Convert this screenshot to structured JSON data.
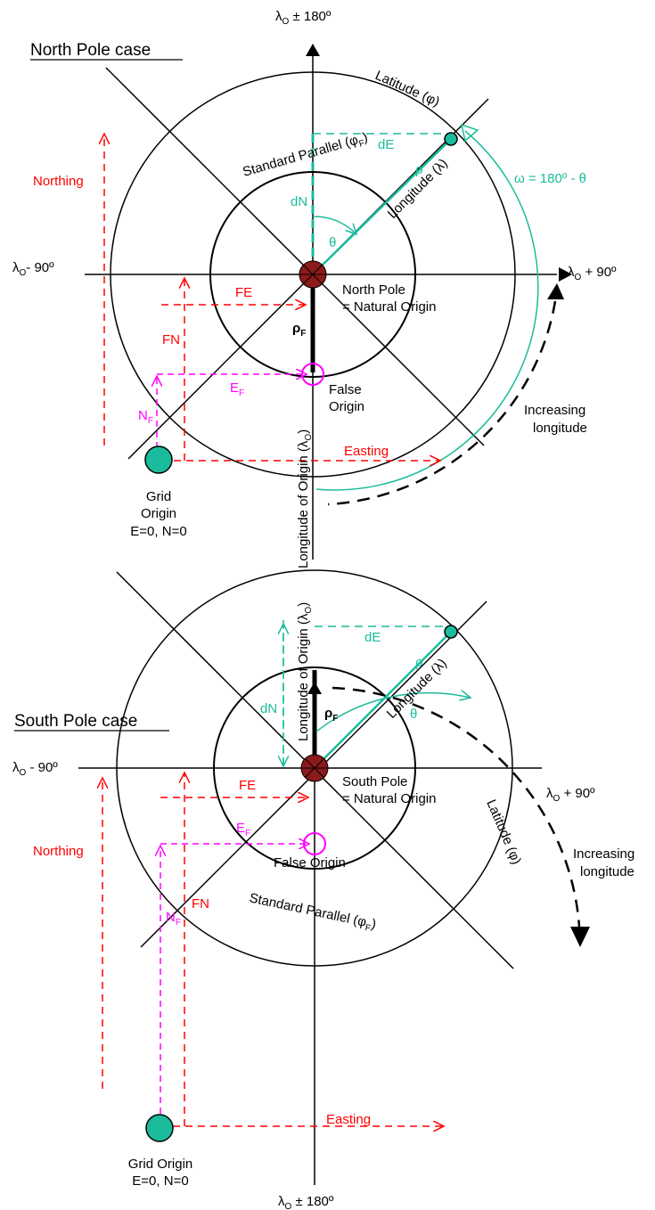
{
  "north": {
    "title": "North Pole case",
    "top_axis": "λ",
    "top_axis_sub": "O",
    "top_axis_suffix": " ± 180º",
    "left_axis": "λ",
    "left_axis_sub": "O",
    "left_axis_suffix": "- 90º",
    "right_axis": "λ",
    "right_axis_sub": "O",
    "right_axis_suffix": " + 90º",
    "latitude": "Latitude (φ)",
    "standard_parallel": "Standard  Parallel (φ",
    "standard_parallel_sub": "F",
    "standard_parallel_end": ")",
    "longitude": "Longitude (λ)",
    "longitude_of_origin": "Longitude of Origin (λ",
    "longitude_of_origin_sub": "O",
    "longitude_of_origin_end": ")",
    "omega": "ω = 180º - θ",
    "theta": "θ",
    "rho": "ρ",
    "dE": "dE",
    "dN": "dN",
    "rhoF": "ρ",
    "rhoF_sub": "F",
    "pole_line1": "North Pole",
    "pole_line2": "= Natural Origin",
    "false_origin_line1": "False",
    "false_origin_line2": "Origin",
    "increasing_line1": "Increasing",
    "increasing_line2": "longitude",
    "northing": "Northing",
    "easting": "Easting",
    "FE": "FE",
    "FN": "FN",
    "EF": "E",
    "EF_sub": "F",
    "NF": "N",
    "NF_sub": "F",
    "grid_line1": "Grid",
    "grid_line2": "Origin",
    "grid_line3": "E=0, N=0"
  },
  "south": {
    "title": "South Pole case",
    "bottom_axis": "λ",
    "bottom_axis_sub": "O",
    "bottom_axis_suffix": " ± 180º",
    "left_axis": "λ",
    "left_axis_sub": "O",
    "left_axis_suffix": " - 90º",
    "right_axis": "λ",
    "right_axis_sub": "O",
    "right_axis_suffix": " + 90º",
    "latitude": "Latitude (φ)",
    "standard_parallel": "Standard  Parallel (φ",
    "standard_parallel_sub": "F",
    "standard_parallel_end": ")",
    "longitude": "Longitude (λ)",
    "longitude_of_origin": "Longitude of Origin (λ",
    "longitude_of_origin_sub": "O",
    "longitude_of_origin_end": ")",
    "theta": "θ",
    "rho": "ρ",
    "dE": "dE",
    "dN": "dN",
    "rhoF": "ρ",
    "rhoF_sub": "F",
    "pole_line1": "South Pole",
    "pole_line2": "= Natural Origin",
    "false_origin": "False Origin",
    "increasing_line1": "Increasing",
    "increasing_line2": "longitude",
    "northing": "Northing",
    "easting": "Easting",
    "FE": "FE",
    "FN": "FN",
    "EF": "E",
    "EF_sub": "F",
    "NF": "N",
    "NF_sub": "F",
    "grid_line1": "Grid Origin",
    "grid_line2": "E=0, N=0"
  },
  "colors": {
    "red": "#ff0000",
    "teal": "#1abc9c",
    "magenta": "#ff00ff",
    "pole": "#8b1a1a",
    "origin": "#1abc9c"
  }
}
